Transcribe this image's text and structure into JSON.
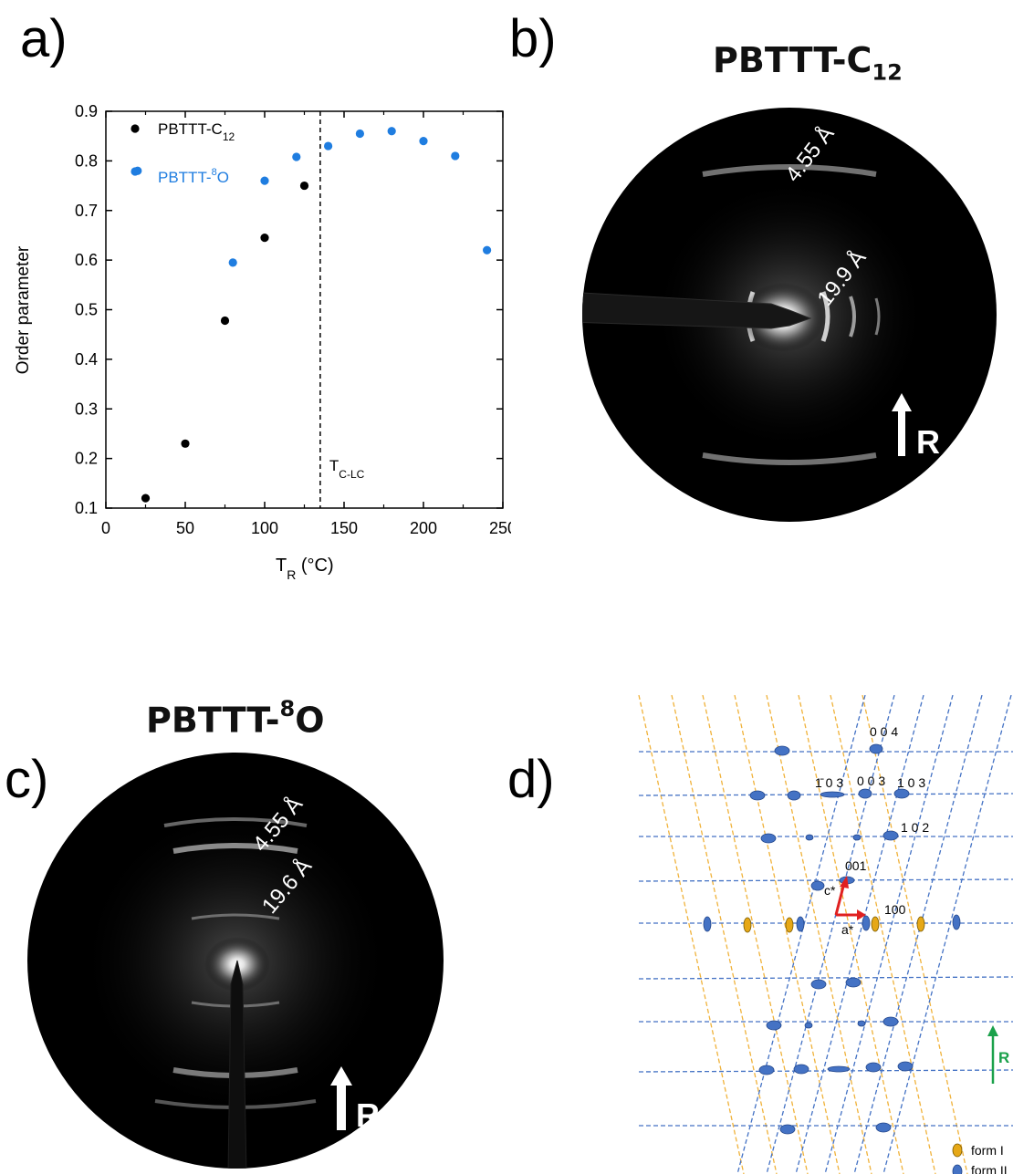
{
  "panels": {
    "a": {
      "letter": "a)"
    },
    "b": {
      "letter": "b)",
      "title_main": "PBTTT-C",
      "title_sub": "12",
      "label_outer": "4.55 Å",
      "label_inner": "19.9 Å",
      "arrow_label": "R"
    },
    "c": {
      "letter": "c)",
      "title_main": "PBTTT-",
      "title_sup": "8",
      "title_tail": "O",
      "label_outer": "4.55 Å",
      "label_inner": "19.6 Å",
      "arrow_label": "R"
    },
    "d": {
      "letter": "d)",
      "labels": {
        "r004": "0 0 4",
        "rm103": "1̄ 0 3",
        "r003": "0 0 3",
        "r103": "1 0 3",
        "r102": "1 0 2",
        "r001": "001",
        "r100": "100",
        "c_star": "c*",
        "a_star": "a*",
        "arrow": "R"
      },
      "legend": [
        "form I",
        "form II"
      ],
      "colors": {
        "form_I": "#e6a817",
        "form_II": "#4472c4",
        "grid_I": "#f0b23a",
        "grid_II": "#4472c4",
        "vector": "#e02020",
        "arrow": "#1aa14a"
      }
    }
  },
  "chart_data": {
    "type": "scatter",
    "xlabel_main": "T",
    "xlabel_sub": "R",
    "xlabel_tail": " (°C)",
    "ylabel": "Order parameter",
    "xlim": [
      0,
      250
    ],
    "ylim": [
      0.1,
      0.9
    ],
    "xticks": [
      0,
      50,
      100,
      150,
      200,
      250
    ],
    "yticks": [
      0.1,
      0.2,
      0.3,
      0.4,
      0.5,
      0.6,
      0.7,
      0.8,
      0.9
    ],
    "transition_x": 135,
    "transition_label_main": "T",
    "transition_label_sub": "C-LC",
    "grid": false,
    "legend_position": "top-left",
    "series": [
      {
        "name_main": "PBTTT-C",
        "name_sub": "12",
        "color": "#000000",
        "x": [
          25,
          50,
          75,
          100,
          125
        ],
        "y": [
          0.12,
          0.23,
          0.478,
          0.645,
          0.75
        ]
      },
      {
        "name_main": "PBTTT-",
        "name_sup": "8",
        "name_tail": "O",
        "color": "#1f7de0",
        "x": [
          20,
          80,
          100,
          120,
          140,
          160,
          180,
          200,
          220,
          240
        ],
        "y": [
          0.78,
          0.595,
          0.76,
          0.808,
          0.83,
          0.855,
          0.86,
          0.84,
          0.81,
          0.62
        ]
      }
    ]
  }
}
